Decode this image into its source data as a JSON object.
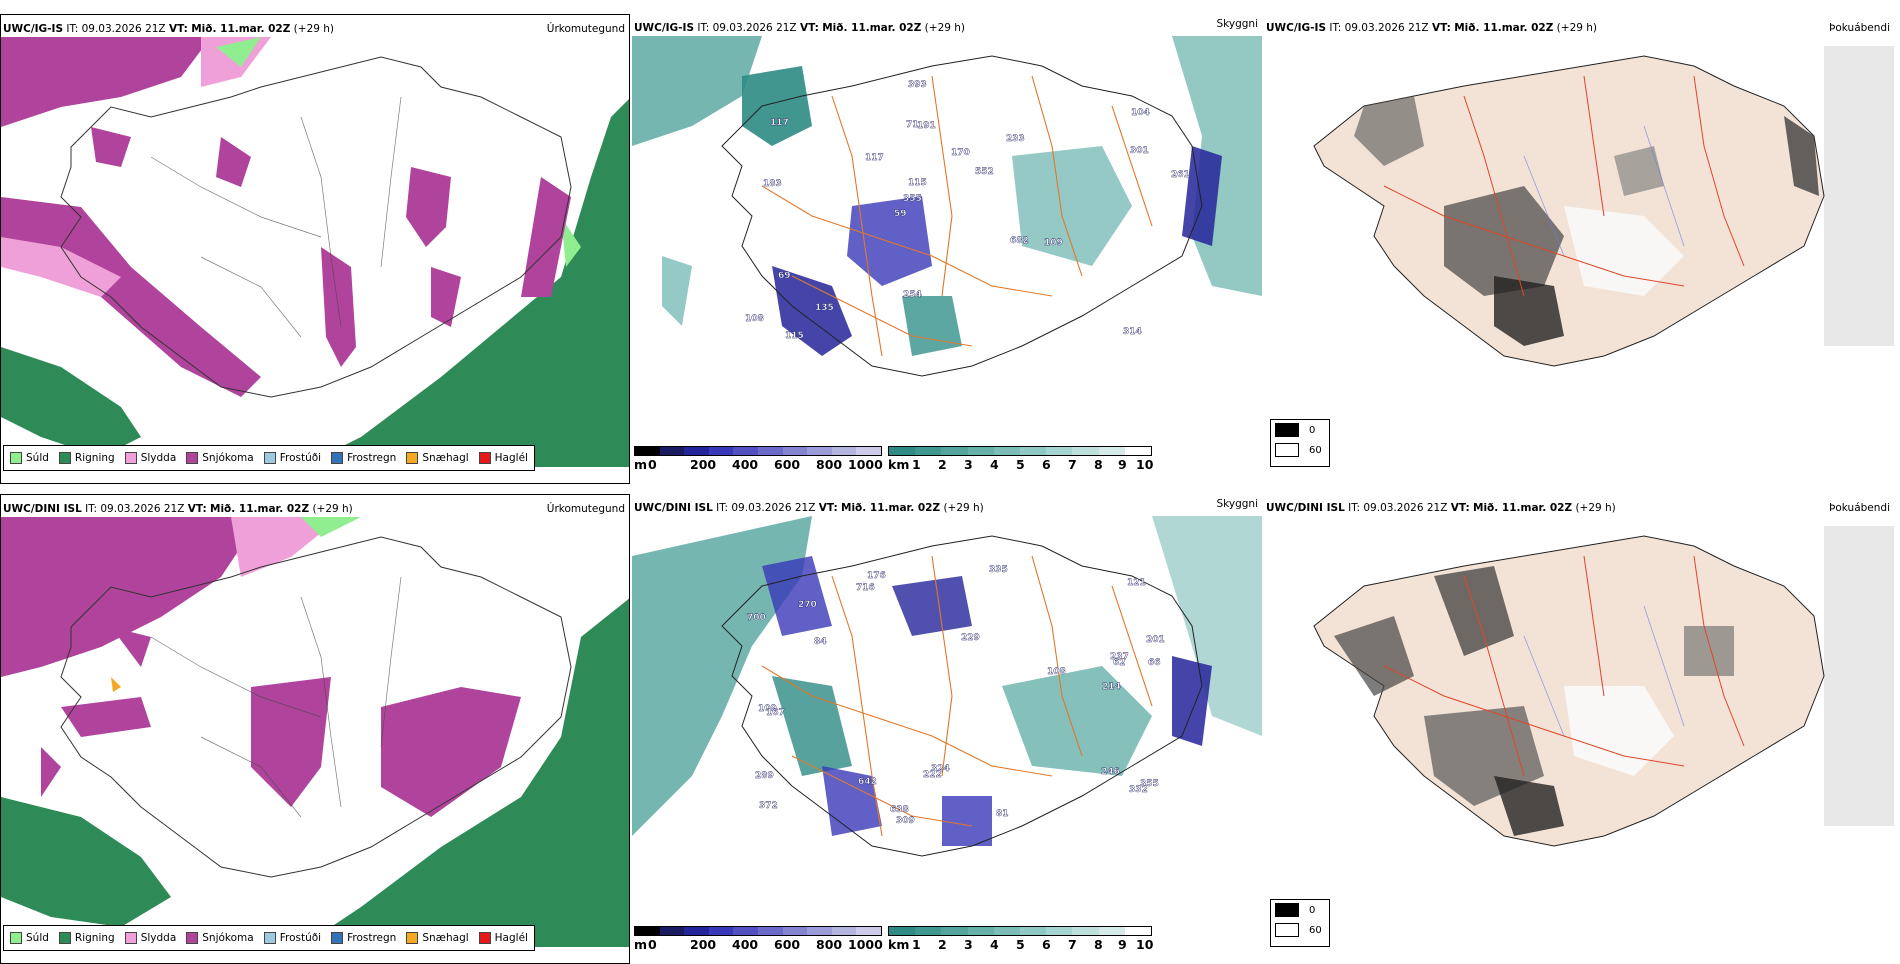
{
  "rows": [
    {
      "model": "UWC/IG-IS",
      "it_label": "IT:",
      "it_value": "09.03.2026 21Z",
      "vt_label": "VT:",
      "vt_value": "Mið. 11.mar. 02Z",
      "lead": "(+29 h)"
    },
    {
      "model": "UWC/DINI ISL",
      "it_label": "IT:",
      "it_value": "09.03.2026 21Z",
      "vt_label": "VT:",
      "vt_value": "Mið. 11.mar. 02Z",
      "lead": "(+29 h)"
    }
  ],
  "panels": {
    "precip_title": "Úrkomutegund",
    "visibility_title": "Skyggni",
    "cloud_title": "Þokuábendi"
  },
  "precip_legend": [
    {
      "label": "Súld",
      "color": "#90ee90"
    },
    {
      "label": "Rigning",
      "color": "#2e8b57"
    },
    {
      "label": "Slydda",
      "color": "#f0a0d8"
    },
    {
      "label": "Snjókoma",
      "color": "#b0449c"
    },
    {
      "label": "Frostúði",
      "color": "#9ecae1"
    },
    {
      "label": "Frostregn",
      "color": "#3573b8"
    },
    {
      "label": "Snæhagl",
      "color": "#f5a623"
    },
    {
      "label": "Haglél",
      "color": "#e31a1c"
    }
  ],
  "ceiling_bar": {
    "unit": "m",
    "ticks": [
      "0",
      "200",
      "400",
      "600",
      "800",
      "1000"
    ],
    "colors": [
      "#000000",
      "#1a1a60",
      "#24249a",
      "#3838b8",
      "#5050c0",
      "#6a6ac8",
      "#8484d0",
      "#9c9cd8",
      "#b4b4e0",
      "#ccccea"
    ]
  },
  "visibility_bar": {
    "unit": "km",
    "ticks": [
      "1",
      "2",
      "3",
      "4",
      "5",
      "6",
      "7",
      "8",
      "9",
      "10"
    ],
    "colors": [
      "#2e8b84",
      "#3f9890",
      "#52a49d",
      "#66b0aa",
      "#7bbcb6",
      "#90c8c3",
      "#a6d4d0",
      "#bde0dd",
      "#d4ebe9",
      "#ffffff"
    ]
  },
  "cloud_legend": [
    {
      "label": "0",
      "color": "#000000"
    },
    {
      "label": "60",
      "color": "#ffffff"
    }
  ],
  "ceiling_labels_row1": [
    "314",
    "183",
    "104",
    "59",
    "233",
    "115",
    "71",
    "170",
    "69",
    "117",
    "108",
    "135",
    "191",
    "552",
    "109",
    "117",
    "393",
    "261",
    "682",
    "301",
    "355",
    "254",
    "115"
  ],
  "ceiling_labels_row2": [
    "246",
    "201",
    "355",
    "229",
    "372",
    "176",
    "237",
    "642",
    "121",
    "84",
    "66",
    "700",
    "214",
    "309",
    "289",
    "270",
    "332",
    "716",
    "324",
    "62",
    "109",
    "167",
    "81",
    "108",
    "638",
    "222",
    "335"
  ]
}
